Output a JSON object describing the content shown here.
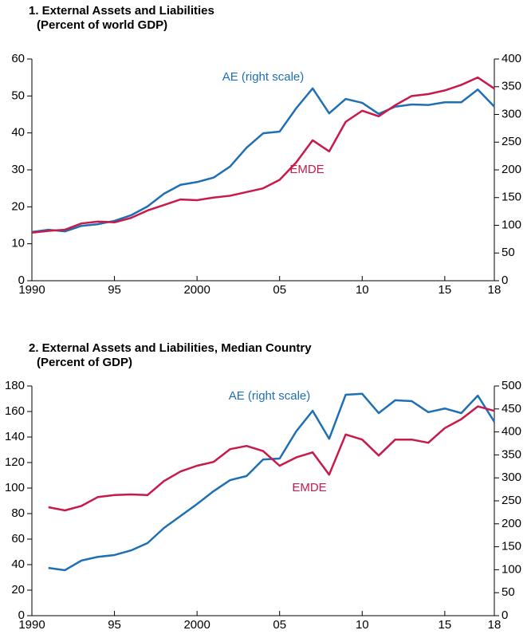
{
  "chart_data": [
    {
      "type": "line",
      "title": "1. External Assets and Liabilities",
      "subtitle": "(Percent of world GDP)",
      "x": [
        1990,
        1991,
        1992,
        1993,
        1994,
        1995,
        1996,
        1997,
        1998,
        1999,
        2000,
        2001,
        2002,
        2003,
        2004,
        2005,
        2006,
        2007,
        2008,
        2009,
        2010,
        2011,
        2012,
        2013,
        2014,
        2015,
        2016,
        2017,
        2018
      ],
      "xlim": [
        1990,
        2018
      ],
      "xticks": [
        1990,
        {
          "value": 1995,
          "label": "95"
        },
        2000,
        {
          "value": 2005,
          "label": "05"
        },
        {
          "value": 2010,
          "label": "10"
        },
        {
          "value": 2015,
          "label": "15"
        },
        {
          "value": 2018,
          "label": "18"
        }
      ],
      "ylim": [
        0,
        60
      ],
      "yticks": [
        0,
        10,
        20,
        30,
        40,
        50,
        60
      ],
      "y2lim": [
        0,
        400
      ],
      "y2ticks": [
        0,
        50,
        100,
        150,
        200,
        250,
        300,
        350,
        400
      ],
      "series": [
        {
          "name": "AE (right scale)",
          "color": "#1f6fb4",
          "axis": "y2",
          "values": [
            88,
            92,
            89,
            99,
            102,
            108,
            118,
            134,
            157,
            173,
            178,
            186,
            206,
            240,
            266,
            269,
            311,
            347,
            302,
            328,
            321,
            301,
            314,
            318,
            317,
            322,
            322,
            345,
            314
          ]
        },
        {
          "name": "EMDE",
          "color": "#c8194b",
          "values": [
            13,
            13.5,
            13.8,
            15.5,
            16,
            15.8,
            17,
            19,
            20.5,
            22,
            21.8,
            22.5,
            23,
            24,
            25,
            27.3,
            32,
            38,
            35,
            43,
            46,
            44.5,
            47.5,
            50,
            50.5,
            51.5,
            53,
            55,
            52
          ]
        }
      ]
    },
    {
      "type": "line",
      "title": "2. External Assets and Liabilities, Median Country",
      "subtitle": "(Percent of GDP)",
      "x": [
        1991,
        1992,
        1993,
        1994,
        1995,
        1996,
        1997,
        1998,
        1999,
        2000,
        2001,
        2002,
        2003,
        2004,
        2005,
        2006,
        2007,
        2008,
        2009,
        2010,
        2011,
        2012,
        2013,
        2014,
        2015,
        2016,
        2017,
        2018
      ],
      "xlim": [
        1990,
        2018
      ],
      "xticks": [
        1990,
        {
          "value": 1995,
          "label": "95"
        },
        2000,
        {
          "value": 2005,
          "label": "05"
        },
        {
          "value": 2010,
          "label": "10"
        },
        {
          "value": 2015,
          "label": "15"
        },
        {
          "value": 2018,
          "label": "18"
        }
      ],
      "ylim": [
        0,
        180
      ],
      "yticks": [
        0,
        20,
        40,
        60,
        80,
        100,
        120,
        140,
        160,
        180
      ],
      "y2lim": [
        0,
        500
      ],
      "y2ticks": [
        0,
        50,
        100,
        150,
        200,
        250,
        300,
        350,
        400,
        450,
        500
      ],
      "series": [
        {
          "name": "AE (right scale)",
          "color": "#1f6fb4",
          "axis": "y2",
          "values": [
            104,
            99,
            120,
            128,
            132,
            142,
            158,
            191,
            217,
            243,
            271,
            295,
            304,
            340,
            342,
            401,
            446,
            385,
            481,
            483,
            441,
            469,
            467,
            443,
            451,
            441,
            479,
            422
          ]
        },
        {
          "name": "EMDE",
          "color": "#c8194b",
          "values": [
            85,
            82.5,
            86,
            93,
            94.5,
            95,
            94.5,
            105.5,
            113,
            117.5,
            120.5,
            130.5,
            133,
            129,
            117.5,
            124,
            128,
            110.5,
            142,
            138,
            125.5,
            138,
            138,
            135.5,
            147,
            154,
            164,
            160.5
          ]
        }
      ]
    }
  ]
}
